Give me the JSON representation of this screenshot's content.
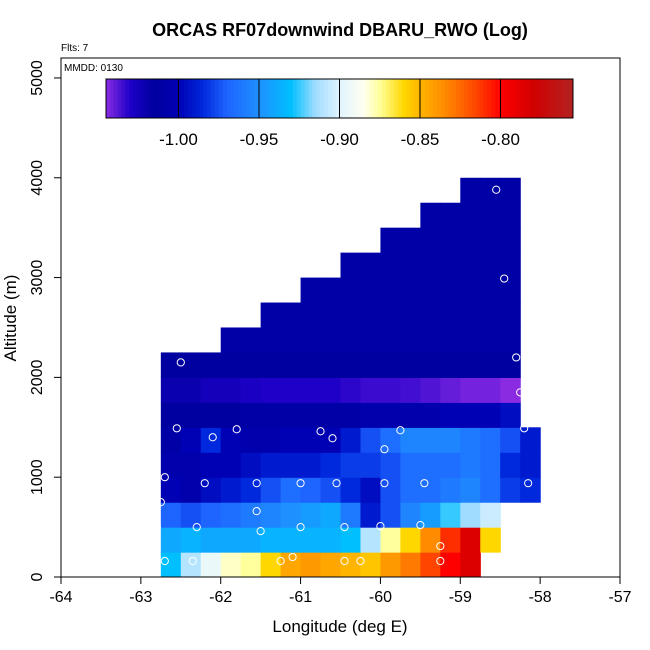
{
  "chart_data": {
    "type": "heatmap",
    "title": "ORCAS RF07downwind DBARU_RWO (Log)",
    "flights_label": "Flts: 7",
    "date_label": "MMDD: 0130",
    "xlabel": "Longitude (deg E)",
    "ylabel": "Altitude (m)",
    "xlim": [
      -64,
      -57
    ],
    "ylim": [
      0,
      5200
    ],
    "xticks": [
      -64,
      -63,
      -62,
      -61,
      -60,
      -59,
      -58,
      -57
    ],
    "yticks": [
      0,
      1000,
      2000,
      3000,
      4000,
      5000
    ],
    "colorbar": {
      "min": -1.045,
      "max": -0.755,
      "ticks": [
        -1.0,
        -0.95,
        -0.9,
        -0.85,
        -0.8
      ],
      "tick_labels": [
        "-1.00",
        "-0.95",
        "-0.90",
        "-0.85",
        "-0.80"
      ],
      "stops": [
        {
          "v": -1.045,
          "color": "#8a2be2"
        },
        {
          "v": -1.03,
          "color": "#1e00c8"
        },
        {
          "v": -1.015,
          "color": "#0000a0"
        },
        {
          "v": -1.0,
          "color": "#0000b4"
        },
        {
          "v": -0.985,
          "color": "#0028dc"
        },
        {
          "v": -0.97,
          "color": "#1e64ff"
        },
        {
          "v": -0.95,
          "color": "#1e90ff"
        },
        {
          "v": -0.93,
          "color": "#00bfff"
        },
        {
          "v": -0.915,
          "color": "#a0dcff"
        },
        {
          "v": -0.9,
          "color": "#e0f4ff"
        },
        {
          "v": -0.885,
          "color": "#fffff0"
        },
        {
          "v": -0.875,
          "color": "#ffff9b"
        },
        {
          "v": -0.86,
          "color": "#ffd700"
        },
        {
          "v": -0.85,
          "color": "#ffb400"
        },
        {
          "v": -0.835,
          "color": "#ff8c00"
        },
        {
          "v": -0.815,
          "color": "#ff4500"
        },
        {
          "v": -0.8,
          "color": "#ff0000"
        },
        {
          "v": -0.78,
          "color": "#d20000"
        },
        {
          "v": -0.755,
          "color": "#b22222"
        }
      ]
    },
    "grid": {
      "lon_edges": [
        -62.75,
        -62.5,
        -62.25,
        -62.0,
        -61.75,
        -61.5,
        -61.25,
        -61.0,
        -60.75,
        -60.5,
        -60.25,
        -60.0,
        -59.75,
        -59.5,
        -59.25,
        -59.0,
        -58.75,
        -58.5,
        -58.25,
        -58.0
      ],
      "alt_edges": [
        0,
        250,
        500,
        750,
        1000,
        1250,
        1500,
        1750,
        2000,
        2250,
        2500,
        2750,
        3000,
        3250,
        3500,
        3750,
        4000
      ],
      "rows": [
        [
          -0.93,
          -0.91,
          -0.895,
          -0.88,
          -0.875,
          -0.86,
          -0.845,
          -0.84,
          -0.845,
          -0.85,
          -0.855,
          -0.84,
          -0.83,
          -0.815,
          -0.8,
          -0.785,
          null,
          null,
          null
        ],
        [
          -0.94,
          -0.935,
          -0.94,
          -0.94,
          -0.94,
          -0.935,
          -0.935,
          -0.935,
          -0.935,
          -0.93,
          -0.91,
          -0.875,
          -0.86,
          -0.835,
          -0.81,
          -0.785,
          -0.86,
          null,
          null
        ],
        [
          -0.97,
          -0.975,
          -0.97,
          -0.965,
          -0.96,
          -0.955,
          -0.95,
          -0.945,
          -0.94,
          -0.96,
          -0.99,
          -0.975,
          -0.955,
          -0.945,
          -0.925,
          -0.915,
          -0.905,
          null,
          null
        ],
        [
          -1.0,
          -1.005,
          -0.995,
          -0.99,
          -0.985,
          -0.975,
          -0.965,
          -0.97,
          -0.975,
          -0.985,
          -0.995,
          -0.975,
          -0.965,
          -0.965,
          -0.96,
          -0.955,
          -0.965,
          -0.98,
          -0.985
        ],
        [
          -1.005,
          -1.005,
          -1.0,
          -1.0,
          -0.995,
          -0.99,
          -0.99,
          -0.99,
          -0.985,
          -0.98,
          -0.98,
          -0.975,
          -0.965,
          -0.965,
          -0.965,
          -0.96,
          -0.965,
          -0.985,
          -0.99
        ],
        [
          -1.01,
          -1.0,
          -0.985,
          -1.0,
          -1.005,
          -1.005,
          -1.0,
          -1.0,
          -1.0,
          -0.99,
          -0.975,
          -0.965,
          -0.955,
          -0.955,
          -0.955,
          -0.96,
          -0.965,
          -0.975,
          -0.99
        ],
        [
          -1.015,
          -1.015,
          -1.015,
          -1.015,
          -1.01,
          -1.01,
          -1.01,
          -1.01,
          -1.01,
          -1.01,
          -1.005,
          -1.005,
          -1.005,
          -1.005,
          -1.0,
          -1.0,
          -1.0,
          -0.995,
          null
        ],
        [
          -1.02,
          -1.02,
          -1.025,
          -1.025,
          -1.028,
          -1.03,
          -1.03,
          -1.03,
          -1.03,
          -1.032,
          -1.034,
          -1.034,
          -1.035,
          -1.037,
          -1.04,
          -1.042,
          -1.042,
          -1.045,
          null
        ],
        [
          -1.015,
          -1.015,
          -1.015,
          -1.015,
          -1.015,
          -1.015,
          -1.015,
          -1.015,
          -1.015,
          -1.015,
          -1.015,
          -1.015,
          -1.015,
          -1.015,
          -1.015,
          -1.015,
          -1.015,
          -1.015,
          null
        ],
        [
          null,
          null,
          null,
          -1.01,
          -1.01,
          -1.01,
          -1.01,
          -1.01,
          -1.01,
          -1.01,
          -1.01,
          -1.01,
          -1.01,
          -1.01,
          -1.01,
          -1.01,
          -1.01,
          -1.01,
          null
        ],
        [
          null,
          null,
          null,
          null,
          null,
          -1.01,
          -1.01,
          -1.01,
          -1.01,
          -1.01,
          -1.01,
          -1.01,
          -1.01,
          -1.01,
          -1.01,
          -1.01,
          -1.01,
          -1.01,
          null
        ],
        [
          null,
          null,
          null,
          null,
          null,
          null,
          null,
          -1.01,
          -1.01,
          -1.01,
          -1.01,
          -1.01,
          -1.01,
          -1.01,
          -1.01,
          -1.01,
          -1.01,
          -1.01,
          null
        ],
        [
          null,
          null,
          null,
          null,
          null,
          null,
          null,
          null,
          null,
          -1.01,
          -1.01,
          -1.01,
          -1.01,
          -1.01,
          -1.01,
          -1.01,
          -1.01,
          -1.01,
          null
        ],
        [
          null,
          null,
          null,
          null,
          null,
          null,
          null,
          null,
          null,
          null,
          null,
          -1.01,
          -1.01,
          -1.01,
          -1.01,
          -1.01,
          -1.01,
          -1.01,
          null
        ],
        [
          null,
          null,
          null,
          null,
          null,
          null,
          null,
          null,
          null,
          null,
          null,
          null,
          null,
          -1.01,
          -1.01,
          -1.01,
          -1.01,
          -1.01,
          null
        ],
        [
          null,
          null,
          null,
          null,
          null,
          null,
          null,
          null,
          null,
          null,
          null,
          null,
          null,
          null,
          null,
          -1.01,
          -1.01,
          -1.01,
          null
        ]
      ]
    },
    "observations": [
      {
        "lon": -62.7,
        "alt": 160
      },
      {
        "lon": -62.35,
        "alt": 160
      },
      {
        "lon": -61.1,
        "alt": 200
      },
      {
        "lon": -61.25,
        "alt": 160
      },
      {
        "lon": -60.45,
        "alt": 160
      },
      {
        "lon": -60.25,
        "alt": 160
      },
      {
        "lon": -59.25,
        "alt": 310
      },
      {
        "lon": -59.25,
        "alt": 160
      },
      {
        "lon": -62.8,
        "alt": 500
      },
      {
        "lon": -62.3,
        "alt": 500
      },
      {
        "lon": -61.5,
        "alt": 460
      },
      {
        "lon": -61.0,
        "alt": 500
      },
      {
        "lon": -60.45,
        "alt": 500
      },
      {
        "lon": -60.0,
        "alt": 510
      },
      {
        "lon": -59.5,
        "alt": 520
      },
      {
        "lon": -61.55,
        "alt": 660
      },
      {
        "lon": -62.75,
        "alt": 750
      },
      {
        "lon": -62.7,
        "alt": 1000
      },
      {
        "lon": -62.2,
        "alt": 940
      },
      {
        "lon": -61.55,
        "alt": 940
      },
      {
        "lon": -61.0,
        "alt": 940
      },
      {
        "lon": -60.55,
        "alt": 940
      },
      {
        "lon": -59.95,
        "alt": 940
      },
      {
        "lon": -59.45,
        "alt": 940
      },
      {
        "lon": -58.15,
        "alt": 940
      },
      {
        "lon": -62.55,
        "alt": 1490
      },
      {
        "lon": -62.1,
        "alt": 1400
      },
      {
        "lon": -61.8,
        "alt": 1480
      },
      {
        "lon": -60.75,
        "alt": 1460
      },
      {
        "lon": -60.6,
        "alt": 1390
      },
      {
        "lon": -59.95,
        "alt": 1280
      },
      {
        "lon": -59.75,
        "alt": 1470
      },
      {
        "lon": -58.2,
        "alt": 1490
      },
      {
        "lon": -62.5,
        "alt": 2150
      },
      {
        "lon": -58.3,
        "alt": 2200
      },
      {
        "lon": -58.25,
        "alt": 1850
      },
      {
        "lon": -58.45,
        "alt": 2990
      },
      {
        "lon": -58.55,
        "alt": 3880
      }
    ]
  }
}
